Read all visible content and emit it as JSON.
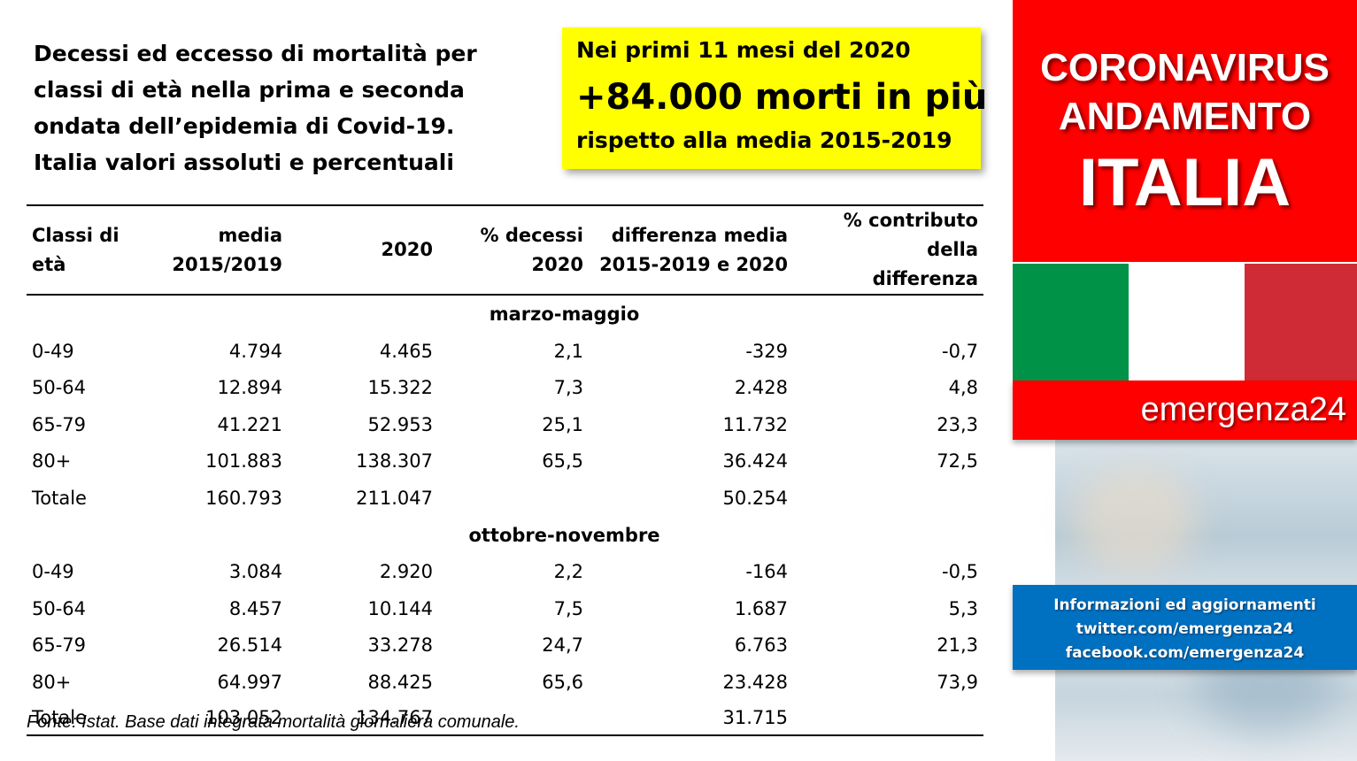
{
  "title_lines": [
    "Decessi ed eccesso di mortalità per",
    "classi di età nella prima e seconda",
    "ondata dell’epidemia di Covid-19.",
    "Italia valori assoluti e percentuali"
  ],
  "highlight": {
    "line1": "Nei primi 11 mesi del 2020",
    "line2": "+84.000 morti in più",
    "line3": "rispetto alla media 2015-2019",
    "color": "#ffff00"
  },
  "table": {
    "headers": {
      "age": [
        "Classi di",
        "età"
      ],
      "avg": [
        "media",
        "2015/2019"
      ],
      "y2020": "2020",
      "pct": [
        "% decessi",
        "2020"
      ],
      "diff": [
        "differenza media",
        "2015-2019 e 2020"
      ],
      "contrib": [
        "% contributo della",
        "differenza"
      ]
    },
    "sections": [
      {
        "label": "marzo-maggio",
        "rows": [
          {
            "age": "0-49",
            "avg": "4.794",
            "y2020": "4.465",
            "pct": "2,1",
            "diff": "-329",
            "contrib": "-0,7"
          },
          {
            "age": "50-64",
            "avg": "12.894",
            "y2020": "15.322",
            "pct": "7,3",
            "diff": "2.428",
            "contrib": "4,8"
          },
          {
            "age": "65-79",
            "avg": "41.221",
            "y2020": "52.953",
            "pct": "25,1",
            "diff": "11.732",
            "contrib": "23,3"
          },
          {
            "age": "80+",
            "avg": "101.883",
            "y2020": "138.307",
            "pct": "65,5",
            "diff": "36.424",
            "contrib": "72,5"
          },
          {
            "age": "Totale",
            "avg": "160.793",
            "y2020": "211.047",
            "pct": "",
            "diff": "50.254",
            "contrib": ""
          }
        ]
      },
      {
        "label": "ottobre-novembre",
        "rows": [
          {
            "age": "0-49",
            "avg": "3.084",
            "y2020": "2.920",
            "pct": "2,2",
            "diff": "-164",
            "contrib": "-0,5"
          },
          {
            "age": "50-64",
            "avg": "8.457",
            "y2020": "10.144",
            "pct": "7,5",
            "diff": "1.687",
            "contrib": "5,3"
          },
          {
            "age": "65-79",
            "avg": "26.514",
            "y2020": "33.278",
            "pct": "24,7",
            "diff": "6.763",
            "contrib": "21,3"
          },
          {
            "age": "80+",
            "avg": "64.997",
            "y2020": "88.425",
            "pct": "65,6",
            "diff": "23.428",
            "contrib": "73,9"
          },
          {
            "age": "Totale",
            "avg": "103.052",
            "y2020": "134.767",
            "pct": "",
            "diff": "31.715",
            "contrib": ""
          }
        ]
      }
    ]
  },
  "source": "Fonte: Istat. Base dati integrata mortalità giornaliera comunale.",
  "sidebar": {
    "line1": "CORONAVIRUS",
    "line2": "ANDAMENTO",
    "line3": "ITALIA",
    "brand": "emergenza24",
    "info": [
      "Informazioni ed aggiornamenti",
      "twitter.com/emergenza24",
      "facebook.com/emergenza24"
    ],
    "red": "#ff0000",
    "blue": "#0070c0"
  }
}
